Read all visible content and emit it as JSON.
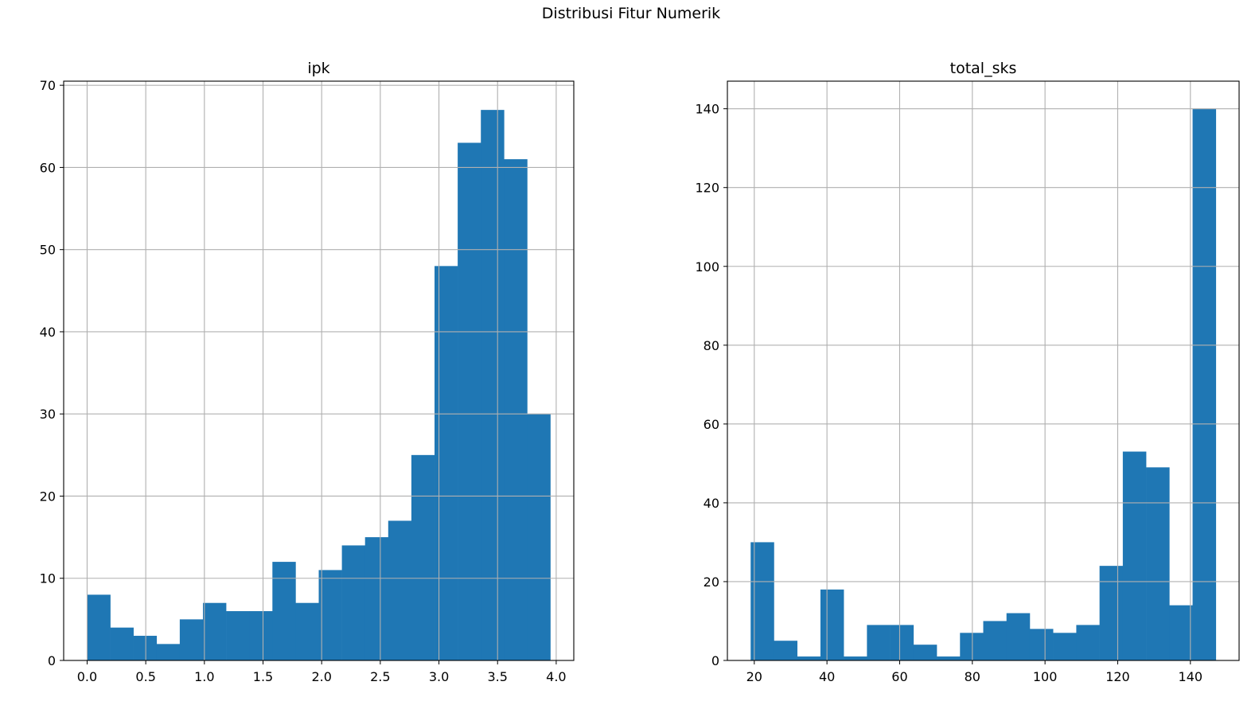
{
  "figure": {
    "suptitle": "Distribusi Fitur Numerik",
    "bar_color": "#1f77b4",
    "grid": true
  },
  "chart_data": [
    {
      "type": "bar",
      "title": "ipk",
      "xlabel": "",
      "ylabel": "",
      "bin_edges": [
        0.0,
        0.1975,
        0.395,
        0.5925,
        0.79,
        0.9875,
        1.185,
        1.3825,
        1.58,
        1.7775,
        1.975,
        2.1725,
        2.37,
        2.5675,
        2.765,
        2.9625,
        3.16,
        3.3575,
        3.555,
        3.7525,
        3.95
      ],
      "values": [
        8,
        4,
        3,
        2,
        5,
        7,
        6,
        6,
        12,
        7,
        11,
        14,
        15,
        17,
        25,
        48,
        63,
        67,
        61,
        30
      ],
      "xlim": [
        -0.2,
        4.15
      ],
      "ylim": [
        0,
        70.5
      ],
      "xticks": [
        0.0,
        0.5,
        1.0,
        1.5,
        2.0,
        2.5,
        3.0,
        3.5,
        4.0
      ],
      "xtick_labels": [
        "0.0",
        "0.5",
        "1.0",
        "1.5",
        "2.0",
        "2.5",
        "3.0",
        "3.5",
        "4.0"
      ],
      "yticks": [
        0,
        10,
        20,
        30,
        40,
        50,
        60,
        70
      ],
      "ytick_labels": [
        "0",
        "10",
        "20",
        "30",
        "40",
        "50",
        "60",
        "70"
      ]
    },
    {
      "type": "bar",
      "title": "total_sks",
      "xlabel": "",
      "ylabel": "",
      "bin_edges": [
        19,
        25.4,
        31.8,
        38.2,
        44.6,
        51,
        57.4,
        63.8,
        70.2,
        76.6,
        83,
        89.4,
        95.8,
        102.2,
        108.6,
        115,
        121.4,
        127.8,
        134.2,
        140.6,
        147
      ],
      "values": [
        30,
        5,
        1,
        18,
        1,
        9,
        9,
        4,
        1,
        7,
        10,
        12,
        8,
        7,
        9,
        24,
        53,
        49,
        14,
        140
      ],
      "xlim": [
        12.6,
        153.4
      ],
      "ylim": [
        0,
        147
      ],
      "xticks": [
        20,
        40,
        60,
        80,
        100,
        120,
        140
      ],
      "xtick_labels": [
        "20",
        "40",
        "60",
        "80",
        "100",
        "120",
        "140"
      ],
      "yticks": [
        0,
        20,
        40,
        60,
        80,
        100,
        120,
        140
      ],
      "ytick_labels": [
        "0",
        "20",
        "40",
        "60",
        "80",
        "100",
        "120",
        "140"
      ]
    }
  ]
}
